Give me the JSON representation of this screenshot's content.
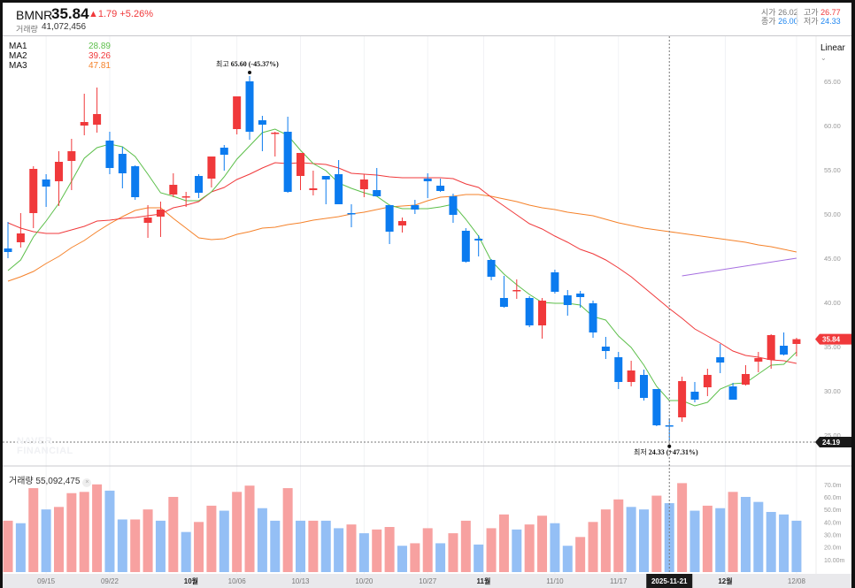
{
  "header": {
    "symbol": "BMNR",
    "price": "35.84",
    "change": "▲1.79",
    "change_pct": "+5.26%",
    "volume_label": "거래량",
    "volume": "41,072,456",
    "open_label": "시가",
    "open": "26.02",
    "high_label": "고가",
    "high": "26.77",
    "close_label": "종가",
    "close": "26.00",
    "low_label": "저가",
    "low": "24.33"
  },
  "legend": [
    {
      "name": "MA1",
      "value": "28.89",
      "color": "#5cbf4a"
    },
    {
      "name": "MA2",
      "value": "39.26",
      "color": "#f0393b"
    },
    {
      "name": "MA3",
      "value": "47.81",
      "color": "#f5822a"
    }
  ],
  "scale_mode": "Linear",
  "annotations": {
    "high_label": "최고",
    "high_text": "65.60 (-45.37%)",
    "low_label": "최저",
    "low_text": "24.33 (+47.31%)"
  },
  "current_price_tag": "35.84",
  "crosshair_price_tag": "24.19",
  "crosshair_date": "2025-11-21",
  "volume_panel": {
    "label": "거래량 55,092,475",
    "close": "×",
    "ticks": [
      "70.0m",
      "60.0m",
      "50.0m",
      "40.0m",
      "30.0m",
      "20.0m",
      "10.00m"
    ]
  },
  "watermark": [
    "NAVER",
    "FINANCIAL"
  ],
  "chart_data": {
    "type": "candlestick",
    "y_ticks": [
      "65.00",
      "60.00",
      "55.00",
      "50.00",
      "45.00",
      "40.00",
      "35.00",
      "30.00",
      "25.00"
    ],
    "ylim": [
      23,
      68
    ],
    "x_labels": [
      {
        "i": 3,
        "t": "09/15",
        "bold": false
      },
      {
        "i": 8,
        "t": "09/22",
        "bold": false
      },
      {
        "i": 14.4,
        "t": "10월",
        "bold": true
      },
      {
        "i": 18,
        "t": "10/06",
        "bold": false
      },
      {
        "i": 23,
        "t": "10/13",
        "bold": false
      },
      {
        "i": 28,
        "t": "10/20",
        "bold": false
      },
      {
        "i": 33,
        "t": "10/27",
        "bold": false
      },
      {
        "i": 37.4,
        "t": "11월",
        "bold": true
      },
      {
        "i": 43,
        "t": "11/10",
        "bold": false
      },
      {
        "i": 48,
        "t": "11/17",
        "bold": false
      },
      {
        "i": 56.4,
        "t": "12월",
        "bold": true
      },
      {
        "i": 62,
        "t": "12/08",
        "bold": false
      }
    ],
    "ohlc": [
      [
        46.1,
        49.1,
        45.0,
        45.7
      ],
      [
        46.8,
        50.1,
        46.2,
        47.8
      ],
      [
        50.1,
        55.4,
        48.4,
        55.1
      ],
      [
        53.9,
        54.5,
        50.8,
        53.1
      ],
      [
        53.7,
        57.1,
        50.9,
        55.9
      ],
      [
        56.0,
        58.5,
        52.7,
        57.1
      ],
      [
        60.0,
        63.6,
        58.9,
        60.4
      ],
      [
        60.1,
        64.3,
        59.2,
        61.3
      ],
      [
        58.3,
        59.3,
        54.5,
        55.2
      ],
      [
        56.8,
        57.6,
        52.9,
        54.6
      ],
      [
        55.4,
        55.5,
        51.6,
        51.9
      ],
      [
        49.0,
        51.0,
        47.3,
        49.6
      ],
      [
        49.7,
        51.4,
        47.4,
        50.5
      ],
      [
        52.2,
        54.6,
        51.9,
        53.3
      ],
      [
        51.9,
        52.5,
        50.8,
        52.0
      ],
      [
        54.3,
        54.5,
        51.8,
        52.4
      ],
      [
        54.0,
        56.5,
        53.0,
        56.5
      ],
      [
        57.5,
        57.8,
        54.9,
        56.7
      ],
      [
        59.6,
        63.3,
        59.0,
        63.3
      ],
      [
        65.0,
        65.6,
        58.4,
        59.3
      ],
      [
        60.6,
        61.1,
        57.1,
        60.1
      ],
      [
        59.1,
        59.3,
        56.5,
        59.2
      ],
      [
        59.3,
        61.0,
        52.4,
        52.5
      ],
      [
        54.3,
        56.9,
        52.7,
        56.9
      ],
      [
        52.7,
        54.9,
        52.1,
        52.9
      ],
      [
        54.3,
        54.3,
        51.1,
        53.9
      ],
      [
        54.5,
        56.1,
        51.1,
        51.1
      ],
      [
        50.1,
        51.1,
        48.5,
        50.0
      ],
      [
        52.8,
        54.5,
        51.9,
        53.9
      ],
      [
        52.7,
        55.2,
        52.0,
        52.0
      ],
      [
        51.0,
        51.0,
        46.6,
        48.0
      ],
      [
        48.7,
        49.6,
        47.9,
        49.2
      ],
      [
        51.0,
        51.6,
        50.0,
        50.5
      ],
      [
        54.0,
        54.6,
        51.8,
        53.7
      ],
      [
        53.2,
        54.0,
        52.5,
        52.6
      ],
      [
        52.0,
        52.3,
        49.0,
        49.9
      ],
      [
        48.1,
        48.4,
        44.5,
        44.6
      ],
      [
        47.2,
        47.6,
        45.2,
        47.0
      ],
      [
        44.8,
        44.9,
        42.5,
        42.9
      ],
      [
        40.5,
        43.0,
        39.4,
        39.5
      ],
      [
        41.3,
        42.6,
        40.4,
        41.4
      ],
      [
        40.5,
        40.7,
        37.2,
        37.4
      ],
      [
        37.4,
        40.5,
        35.9,
        40.2
      ],
      [
        43.4,
        43.7,
        41.0,
        41.2
      ],
      [
        40.8,
        41.4,
        38.5,
        39.7
      ],
      [
        41.0,
        41.3,
        39.4,
        40.6
      ],
      [
        39.9,
        40.2,
        36.0,
        36.6
      ],
      [
        35.0,
        36.1,
        33.6,
        34.5
      ],
      [
        33.8,
        34.4,
        30.2,
        31.0
      ],
      [
        31.0,
        33.4,
        30.5,
        32.3
      ],
      [
        31.8,
        32.4,
        28.9,
        29.2
      ],
      [
        30.2,
        30.2,
        26.0,
        26.1
      ],
      [
        26.1,
        26.9,
        24.33,
        26.0
      ],
      [
        27.0,
        31.6,
        26.5,
        31.1
      ],
      [
        29.9,
        31.0,
        28.7,
        29.0
      ],
      [
        30.4,
        32.5,
        29.4,
        31.8
      ],
      [
        33.8,
        35.3,
        32.0,
        33.2
      ],
      [
        30.5,
        30.9,
        29.0,
        29.0
      ],
      [
        30.7,
        32.9,
        30.6,
        31.9
      ],
      [
        33.3,
        34.4,
        32.1,
        33.7
      ],
      [
        33.5,
        36.4,
        32.5,
        36.3
      ],
      [
        35.1,
        36.6,
        34.0,
        34.1
      ],
      [
        35.3,
        36.0,
        33.9,
        35.84
      ]
    ],
    "ma1": [
      43.6,
      44.8,
      47.4,
      49.2,
      51.2,
      53.7,
      56.3,
      57.5,
      57.9,
      57.6,
      56.5,
      54.5,
      52.4,
      52.0,
      51.5,
      51.5,
      52.5,
      54.2,
      56.2,
      57.7,
      59.2,
      59.6,
      58.9,
      57.2,
      55.7,
      54.9,
      53.5,
      52.9,
      52.4,
      52.0,
      51.0,
      50.6,
      50.6,
      50.6,
      50.8,
      51.1,
      49.4,
      47.5,
      44.7,
      43.2,
      42.0,
      40.9,
      40.0,
      39.9,
      39.9,
      39.7,
      38.4,
      38.0,
      36.2,
      34.9,
      32.9,
      30.5,
      28.9,
      28.9,
      28.3,
      28.7,
      30.2,
      30.8,
      30.9,
      31.9,
      32.9,
      33.0,
      34.4
    ],
    "ma2": [
      49.0,
      48.4,
      48.0,
      47.8,
      47.8,
      48.2,
      48.6,
      49.2,
      49.3,
      49.5,
      49.6,
      49.8,
      50.0,
      50.7,
      51.0,
      51.4,
      52.5,
      53.0,
      53.9,
      54.5,
      55.2,
      55.8,
      55.7,
      55.8,
      55.7,
      55.6,
      55.2,
      54.6,
      54.5,
      54.4,
      54.2,
      54.1,
      54.1,
      54.1,
      54.1,
      54.0,
      53.4,
      53.0,
      51.9,
      50.9,
      49.9,
      48.9,
      48.3,
      47.5,
      46.8,
      46.0,
      45.5,
      44.8,
      43.9,
      42.9,
      41.7,
      40.5,
      39.3,
      38.2,
      37.0,
      36.2,
      35.4,
      34.5,
      34.0,
      33.8,
      33.5,
      33.4,
      33.1
    ],
    "ma3": [
      42.4,
      42.9,
      43.5,
      44.4,
      45.2,
      46.2,
      47.0,
      48.0,
      48.9,
      49.7,
      50.4,
      50.7,
      50.7,
      49.5,
      48.4,
      47.3,
      47.1,
      47.2,
      47.7,
      48.0,
      48.4,
      48.5,
      48.8,
      49.0,
      49.3,
      49.5,
      49.7,
      50.0,
      50.2,
      50.5,
      50.8,
      50.9,
      51.0,
      51.5,
      51.9,
      52.0,
      52.2,
      52.2,
      52.0,
      51.7,
      51.4,
      51.0,
      50.7,
      50.5,
      50.2,
      50.0,
      49.8,
      49.4,
      49.0,
      48.7,
      48.4,
      48.2,
      48.0,
      47.8,
      47.6,
      47.4,
      47.2,
      47.0,
      46.8,
      46.5,
      46.3,
      46.0,
      45.7
    ],
    "trendline": {
      "from": {
        "i": 53,
        "v": 43.0
      },
      "to": {
        "i": 62,
        "v": 45.0
      },
      "color": "#a66fe0"
    },
    "volume_m": [
      41,
      39,
      67,
      50,
      52,
      63,
      64,
      70,
      65,
      42,
      42,
      50,
      41,
      60,
      32,
      40,
      53,
      49,
      64,
      69,
      51,
      41,
      67,
      41,
      41,
      41,
      35,
      38,
      31,
      34,
      36,
      21,
      23,
      35,
      23,
      31,
      41,
      22,
      35,
      46,
      34,
      38,
      45,
      39,
      21,
      28,
      40,
      50,
      58,
      52,
      50,
      61,
      55,
      71,
      49,
      53,
      51,
      64,
      60,
      56,
      48,
      46,
      41
    ],
    "volume_up": [
      1,
      0,
      1,
      0,
      1,
      1,
      1,
      1,
      0,
      0,
      1,
      1,
      0,
      1,
      0,
      1,
      1,
      0,
      1,
      1,
      0,
      0,
      1,
      0,
      1,
      0,
      0,
      1,
      0,
      1,
      1,
      0,
      1,
      1,
      0,
      1,
      1,
      0,
      1,
      1,
      0,
      1,
      1,
      0,
      0,
      1,
      1,
      1,
      1,
      0,
      0,
      1,
      0,
      1,
      0,
      1,
      0,
      1,
      0,
      0,
      0,
      0,
      0
    ]
  }
}
